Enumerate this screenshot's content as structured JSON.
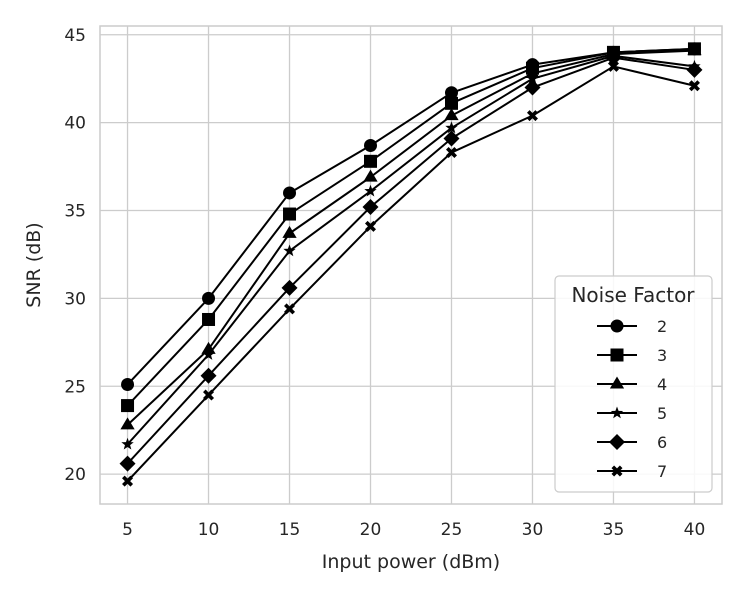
{
  "chart_data": {
    "type": "line",
    "title": "",
    "xlabel": "Input power (dBm)",
    "ylabel": "SNR (dB)",
    "x": [
      5,
      10,
      15,
      20,
      25,
      30,
      35,
      40
    ],
    "xticks": [
      5,
      10,
      15,
      20,
      25,
      30,
      35,
      40
    ],
    "yticks": [
      20,
      25,
      30,
      35,
      40,
      45
    ],
    "xlim": [
      3.3,
      41.7
    ],
    "ylim": [
      18.3,
      45.5
    ],
    "grid": true,
    "legend": {
      "title": "Noise Factor",
      "position": "lower-right"
    },
    "line_color": "#000000",
    "series": [
      {
        "name": "2",
        "marker": "circle",
        "values": [
          25.1,
          30.0,
          36.0,
          38.7,
          41.7,
          43.3,
          44.0,
          44.2
        ]
      },
      {
        "name": "3",
        "marker": "square",
        "values": [
          23.9,
          28.8,
          34.8,
          37.8,
          41.1,
          43.1,
          44.0,
          44.2
        ]
      },
      {
        "name": "4",
        "marker": "triangle",
        "values": [
          22.8,
          27.1,
          33.7,
          36.9,
          40.4,
          42.8,
          43.9,
          44.1
        ]
      },
      {
        "name": "5",
        "marker": "star",
        "values": [
          21.7,
          26.8,
          32.7,
          36.1,
          39.7,
          42.5,
          43.8,
          43.2
        ]
      },
      {
        "name": "6",
        "marker": "diamond",
        "values": [
          20.6,
          25.6,
          30.6,
          35.2,
          39.1,
          42.0,
          43.7,
          43.0
        ]
      },
      {
        "name": "7",
        "marker": "x",
        "values": [
          19.6,
          24.5,
          29.4,
          34.1,
          38.3,
          40.4,
          43.2,
          42.1
        ]
      }
    ]
  }
}
